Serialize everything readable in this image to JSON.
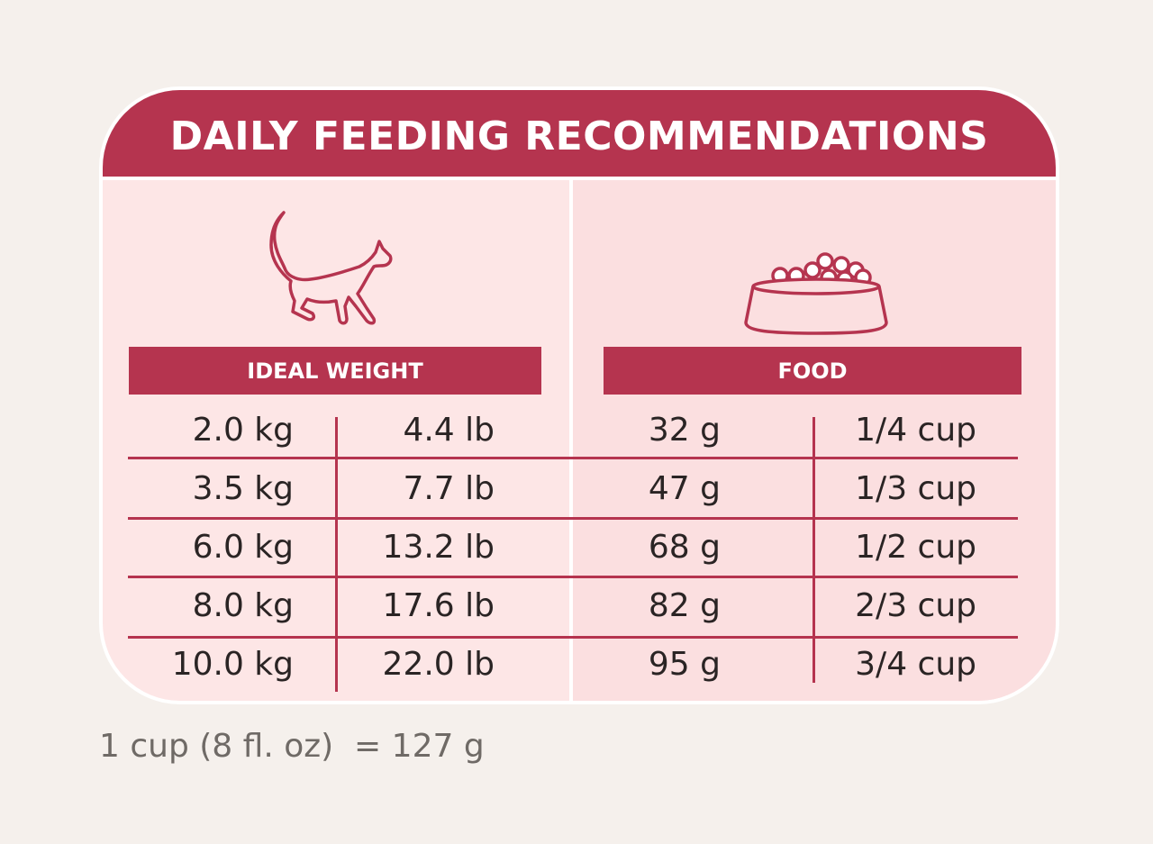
{
  "title": "DAILY FEEDING RECOMMENDATIONS",
  "icons": {
    "cat": "cat-icon",
    "bowl": "food-bowl-icon"
  },
  "headers": {
    "weight": "IDEAL WEIGHT",
    "food": "FOOD"
  },
  "rows": [
    {
      "kg": "2.0 kg",
      "lb": "4.4 lb",
      "g": "32 g",
      "cup": "1/4 cup"
    },
    {
      "kg": "3.5 kg",
      "lb": "7.7 lb",
      "g": "47 g",
      "cup": "1/3 cup"
    },
    {
      "kg": "6.0 kg",
      "lb": "13.2 lb",
      "g": "68 g",
      "cup": "1/2 cup"
    },
    {
      "kg": "8.0 kg",
      "lb": "17.6 lb",
      "g": "82 g",
      "cup": "2/3 cup"
    },
    {
      "kg": "10.0 kg",
      "lb": "22.0 lb",
      "g": "95 g",
      "cup": "3/4 cup"
    }
  ],
  "footnote": "1 cup (8 fl. oz)  = 127 g",
  "colors": {
    "accent": "#b5344f",
    "panel_left": "#fde6e6",
    "panel_right": "#fbdfe0",
    "background": "#f5f0ec"
  }
}
